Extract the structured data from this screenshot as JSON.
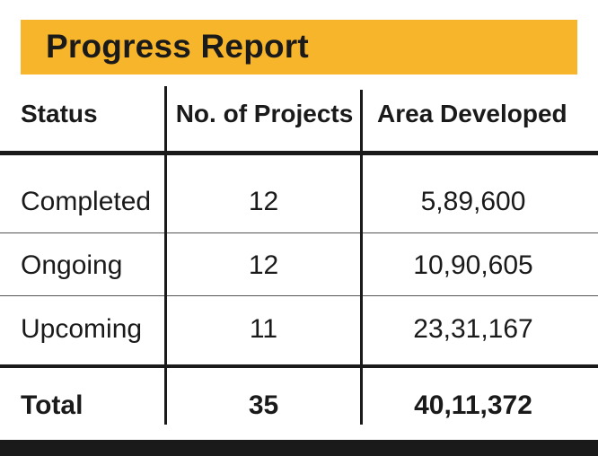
{
  "title": "Progress Report",
  "table": {
    "headers": [
      "Status",
      "No. of Projects",
      "Area Developed"
    ],
    "rows": [
      {
        "status": "Completed",
        "projects": "12",
        "area": "5,89,600"
      },
      {
        "status": "Ongoing",
        "projects": "12",
        "area": "10,90,605"
      },
      {
        "status": "Upcoming",
        "projects": "11",
        "area": "23,31,167"
      }
    ],
    "total": {
      "status": "Total",
      "projects": "35",
      "area": "40,11,372"
    }
  },
  "colors": {
    "accent": "#f7b52c",
    "rule": "#1a1a1a"
  }
}
